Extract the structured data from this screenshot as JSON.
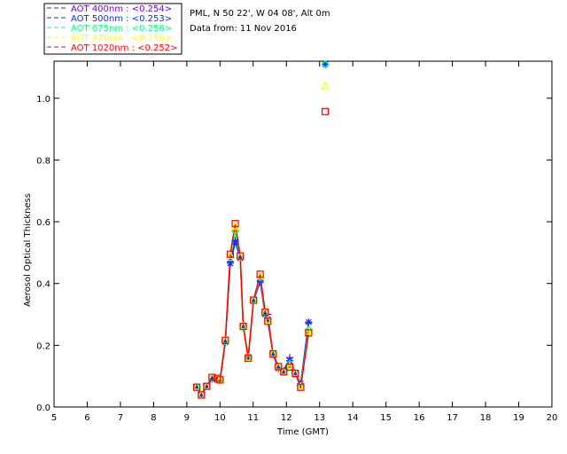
{
  "header": {
    "site": "PML, N 50 22', W 04 08', Alt 0m",
    "date": "Data from: 11 Nov 2016"
  },
  "chart_data": {
    "type": "scatter",
    "xlabel": "Time (GMT)",
    "ylabel": "Aerosol Optical Thickness",
    "xlim": [
      5,
      20
    ],
    "ylim": [
      0,
      1.12
    ],
    "xticks": [
      "5",
      "6",
      "7",
      "8",
      "9",
      "10",
      "11",
      "12",
      "13",
      "14",
      "15",
      "16",
      "17",
      "18",
      "19",
      "20"
    ],
    "yticks": [
      "0.0",
      "0.2",
      "0.4",
      "0.6",
      "0.8",
      "1.0"
    ],
    "legend_position": "top-left-outside",
    "x": [
      9.3,
      9.44,
      9.6,
      9.76,
      9.92,
      10.0,
      10.16,
      10.31,
      10.46,
      10.61,
      10.7,
      10.85,
      11.01,
      11.21,
      11.36,
      11.44,
      11.6,
      11.76,
      11.92,
      12.1,
      12.27,
      12.43,
      12.67,
      null,
      13.17
    ],
    "series": [
      {
        "name": "AOT  400nm : <0.254>",
        "color": "#7700cc",
        "marker": "plus",
        "values": [
          0.066,
          0.04,
          0.068,
          0.09,
          0.088,
          0.085,
          0.21,
          0.47,
          0.54,
          0.48,
          0.262,
          0.162,
          0.345,
          0.405,
          0.3,
          0.3,
          0.17,
          0.125,
          0.118,
          0.16,
          0.11,
          0.075,
          0.272,
          null,
          1.11
        ]
      },
      {
        "name": "AOT  500nm : <0.253>",
        "color": "#0033ff",
        "marker": "asterisk",
        "values": [
          0.066,
          0.04,
          0.068,
          0.09,
          0.088,
          0.085,
          0.21,
          0.465,
          0.535,
          0.482,
          0.262,
          0.162,
          0.345,
          0.41,
          0.3,
          0.285,
          0.17,
          0.125,
          0.115,
          0.15,
          0.11,
          0.075,
          0.275,
          null,
          1.11
        ]
      },
      {
        "name": "AOT  675nm : <0.256>",
        "color": "#00ff88",
        "marker": "diamond",
        "values": [
          0.066,
          0.04,
          0.068,
          0.093,
          0.09,
          0.087,
          0.214,
          0.485,
          0.57,
          0.486,
          0.262,
          0.16,
          0.346,
          0.42,
          0.305,
          0.282,
          0.172,
          0.13,
          0.114,
          0.14,
          0.11,
          0.068,
          0.25,
          null,
          1.11
        ]
      },
      {
        "name": "AOT  870nm : <0.256>",
        "color": "#ffff00",
        "marker": "triangle",
        "values": [
          0.065,
          0.039,
          0.067,
          0.095,
          0.092,
          0.088,
          0.215,
          0.49,
          0.585,
          0.488,
          0.261,
          0.159,
          0.346,
          0.425,
          0.306,
          0.28,
          0.172,
          0.131,
          0.114,
          0.133,
          0.109,
          0.066,
          0.245,
          null,
          1.04
        ]
      },
      {
        "name": "AOT 1020nm : <0.252>",
        "color": "#ff0000",
        "marker": "square",
        "values": [
          0.064,
          0.039,
          0.067,
          0.096,
          0.093,
          0.088,
          0.216,
          0.495,
          0.594,
          0.489,
          0.261,
          0.158,
          0.346,
          0.43,
          0.307,
          0.278,
          0.172,
          0.131,
          0.114,
          0.129,
          0.109,
          0.064,
          0.24,
          null,
          0.957
        ]
      }
    ]
  }
}
